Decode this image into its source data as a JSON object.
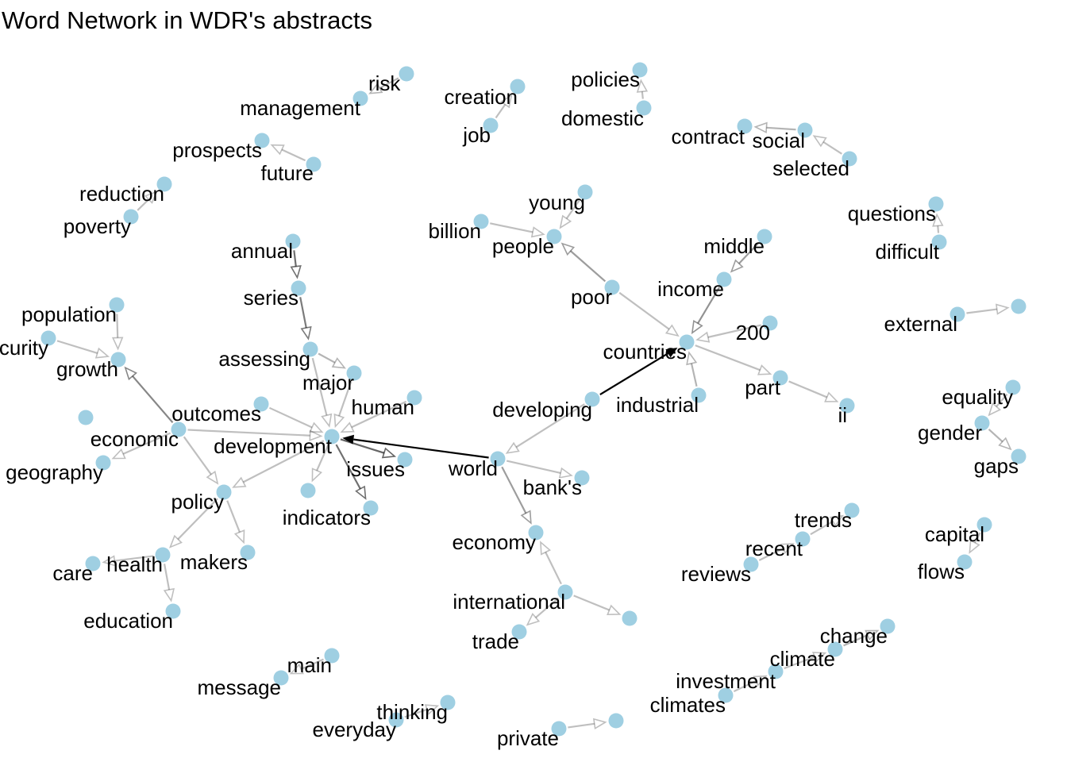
{
  "title": "Word Network in WDR's abstracts",
  "colors": {
    "node": "#9FCFE2",
    "edge": "#000000",
    "label": "#000000",
    "background": "#ffffff"
  },
  "nodes": [
    {
      "id": "risk",
      "label": "risk"
    },
    {
      "id": "management",
      "label": "management"
    },
    {
      "id": "creation",
      "label": "creation"
    },
    {
      "id": "job",
      "label": "job"
    },
    {
      "id": "policies",
      "label": "policies"
    },
    {
      "id": "domestic",
      "label": "domestic"
    },
    {
      "id": "contract",
      "label": "contract"
    },
    {
      "id": "social",
      "label": "social"
    },
    {
      "id": "selected",
      "label": "selected"
    },
    {
      "id": "prospects",
      "label": "prospects"
    },
    {
      "id": "future",
      "label": "future"
    },
    {
      "id": "reduction",
      "label": "reduction"
    },
    {
      "id": "poverty",
      "label": "poverty"
    },
    {
      "id": "young",
      "label": "young"
    },
    {
      "id": "billion",
      "label": "billion"
    },
    {
      "id": "people",
      "label": "people"
    },
    {
      "id": "questions",
      "label": "questions"
    },
    {
      "id": "difficult",
      "label": "difficult"
    },
    {
      "id": "middle",
      "label": "middle"
    },
    {
      "id": "income",
      "label": "income"
    },
    {
      "id": "poor",
      "label": "poor"
    },
    {
      "id": "annual",
      "label": "annual"
    },
    {
      "id": "series",
      "label": "series"
    },
    {
      "id": "200",
      "label": "200"
    },
    {
      "id": "countries",
      "label": "countries"
    },
    {
      "id": "external",
      "label": "external"
    },
    {
      "id": "population",
      "label": "population"
    },
    {
      "id": "security",
      "label": "curity"
    },
    {
      "id": "growth",
      "label": "growth"
    },
    {
      "id": "assessing",
      "label": "assessing"
    },
    {
      "id": "major",
      "label": "major"
    },
    {
      "id": "industrial",
      "label": "industrial"
    },
    {
      "id": "part",
      "label": "part"
    },
    {
      "id": "ii",
      "label": "ii"
    },
    {
      "id": "equality",
      "label": "equality"
    },
    {
      "id": "human",
      "label": "human"
    },
    {
      "id": "outcomes",
      "label": "outcomes"
    },
    {
      "id": "developing",
      "label": "developing"
    },
    {
      "id": "gender",
      "label": "gender"
    },
    {
      "id": "economic",
      "label": "economic"
    },
    {
      "id": "development",
      "label": "development"
    },
    {
      "id": "issues",
      "label": "issues"
    },
    {
      "id": "world",
      "label": "world"
    },
    {
      "id": "gaps",
      "label": "gaps"
    },
    {
      "id": "geography",
      "label": "geography"
    },
    {
      "id": "bank's",
      "label": "bank's"
    },
    {
      "id": "policy",
      "label": "policy"
    },
    {
      "id": "indicators",
      "label": "indicators"
    },
    {
      "id": "unlabeled_dev",
      "label": ""
    },
    {
      "id": "trends",
      "label": "trends"
    },
    {
      "id": "capital",
      "label": "capital"
    },
    {
      "id": "economy",
      "label": "economy"
    },
    {
      "id": "recent",
      "label": "recent"
    },
    {
      "id": "care",
      "label": "care"
    },
    {
      "id": "health",
      "label": "health"
    },
    {
      "id": "makers",
      "label": "makers"
    },
    {
      "id": "flows",
      "label": "flows"
    },
    {
      "id": "reviews",
      "label": "reviews"
    },
    {
      "id": "international",
      "label": "international"
    },
    {
      "id": "unlabeled_intl",
      "label": ""
    },
    {
      "id": "education",
      "label": "education"
    },
    {
      "id": "trade",
      "label": "trade"
    },
    {
      "id": "change",
      "label": "change"
    },
    {
      "id": "climate",
      "label": "climate"
    },
    {
      "id": "main",
      "label": "main"
    },
    {
      "id": "message",
      "label": "message"
    },
    {
      "id": "investment",
      "label": "investment"
    },
    {
      "id": "climates",
      "label": "climates"
    },
    {
      "id": "thinking",
      "label": "thinking"
    },
    {
      "id": "everyday",
      "label": "everyday"
    },
    {
      "id": "private",
      "label": "private"
    },
    {
      "id": "unlabeled_private",
      "label": ""
    }
  ],
  "edges": [
    {
      "from": "risk",
      "to": "management",
      "weight": 0.2
    },
    {
      "from": "job",
      "to": "creation",
      "weight": 0.15
    },
    {
      "from": "domestic",
      "to": "policies",
      "weight": 0.15
    },
    {
      "from": "social",
      "to": "contract",
      "weight": 0.2
    },
    {
      "from": "selected",
      "to": "social",
      "weight": 0.15
    },
    {
      "from": "future",
      "to": "prospects",
      "weight": 0.15
    },
    {
      "from": "poverty",
      "to": "reduction",
      "weight": 0.15
    },
    {
      "from": "young",
      "to": "people",
      "weight": 0.15
    },
    {
      "from": "billion",
      "to": "people",
      "weight": 0.15
    },
    {
      "from": "difficult",
      "to": "questions",
      "weight": 0.15
    },
    {
      "from": "middle",
      "to": "income",
      "weight": 0.3
    },
    {
      "from": "income",
      "to": "countries",
      "weight": 0.35
    },
    {
      "from": "poor",
      "to": "people",
      "weight": 0.3
    },
    {
      "from": "poor",
      "to": "countries",
      "weight": 0.15
    },
    {
      "from": "200",
      "to": "countries",
      "weight": 0.15
    },
    {
      "from": "industrial",
      "to": "countries",
      "weight": 0.2
    },
    {
      "from": "countries",
      "to": "part",
      "weight": 0.15
    },
    {
      "from": "part",
      "to": "ii",
      "weight": 0.15
    },
    {
      "from": "developing",
      "to": "countries",
      "weight": 1.0
    },
    {
      "from": "developing",
      "to": "world",
      "weight": 0.15
    },
    {
      "from": "annual",
      "to": "series",
      "weight": 0.5
    },
    {
      "from": "series",
      "to": "assessing",
      "weight": 0.45
    },
    {
      "from": "assessing",
      "to": "major",
      "weight": 0.2
    },
    {
      "from": "assessing",
      "to": "development",
      "weight": 0.15
    },
    {
      "from": "major",
      "to": "development",
      "weight": 0.15
    },
    {
      "from": "human",
      "to": "development",
      "weight": 0.15
    },
    {
      "from": "outcomes",
      "to": "development",
      "weight": 0.15
    },
    {
      "from": "world",
      "to": "development",
      "weight": 1.0
    },
    {
      "from": "development",
      "to": "issues",
      "weight": 0.55
    },
    {
      "from": "development",
      "to": "indicators",
      "weight": 0.5
    },
    {
      "from": "development",
      "to": "unlabeled_dev",
      "weight": 0.15
    },
    {
      "from": "development",
      "to": "policy",
      "weight": 0.15
    },
    {
      "from": "economic",
      "to": "development",
      "weight": 0.15
    },
    {
      "from": "economic",
      "to": "growth",
      "weight": 0.4
    },
    {
      "from": "security",
      "to": "growth",
      "weight": 0.15
    },
    {
      "from": "population",
      "to": "growth",
      "weight": 0.15
    },
    {
      "from": "economic",
      "to": "geography",
      "weight": 0.15
    },
    {
      "from": "economic",
      "to": "policy",
      "weight": 0.15
    },
    {
      "from": "policy",
      "to": "makers",
      "weight": 0.15
    },
    {
      "from": "policy",
      "to": "health",
      "weight": 0.15
    },
    {
      "from": "health",
      "to": "care",
      "weight": 0.15
    },
    {
      "from": "health",
      "to": "education",
      "weight": 0.15
    },
    {
      "from": "world",
      "to": "bank's",
      "weight": 0.15
    },
    {
      "from": "world",
      "to": "economy",
      "weight": 0.3
    },
    {
      "from": "international",
      "to": "economy",
      "weight": 0.15
    },
    {
      "from": "international",
      "to": "trade",
      "weight": 0.15
    },
    {
      "from": "international",
      "to": "unlabeled_intl",
      "weight": 0.15
    },
    {
      "from": "equality",
      "to": "gender",
      "weight": 0.15
    },
    {
      "from": "gender",
      "to": "gaps",
      "weight": 0.2
    },
    {
      "from": "external",
      "to": "unlabeled_ext",
      "weight": 0.15
    },
    {
      "from": "recent",
      "to": "trends",
      "weight": 0.15
    },
    {
      "from": "reviews",
      "to": "recent",
      "weight": 0.15
    },
    {
      "from": "capital",
      "to": "flows",
      "weight": 0.15
    },
    {
      "from": "climate",
      "to": "change",
      "weight": 0.2
    },
    {
      "from": "investment",
      "to": "climate",
      "weight": 0.15
    },
    {
      "from": "climates",
      "to": "investment",
      "weight": 0.15
    },
    {
      "from": "main",
      "to": "message",
      "weight": 0.15
    },
    {
      "from": "everyday",
      "to": "thinking",
      "weight": 0.15
    },
    {
      "from": "private",
      "to": "unlabeled_private",
      "weight": 0.15
    }
  ]
}
